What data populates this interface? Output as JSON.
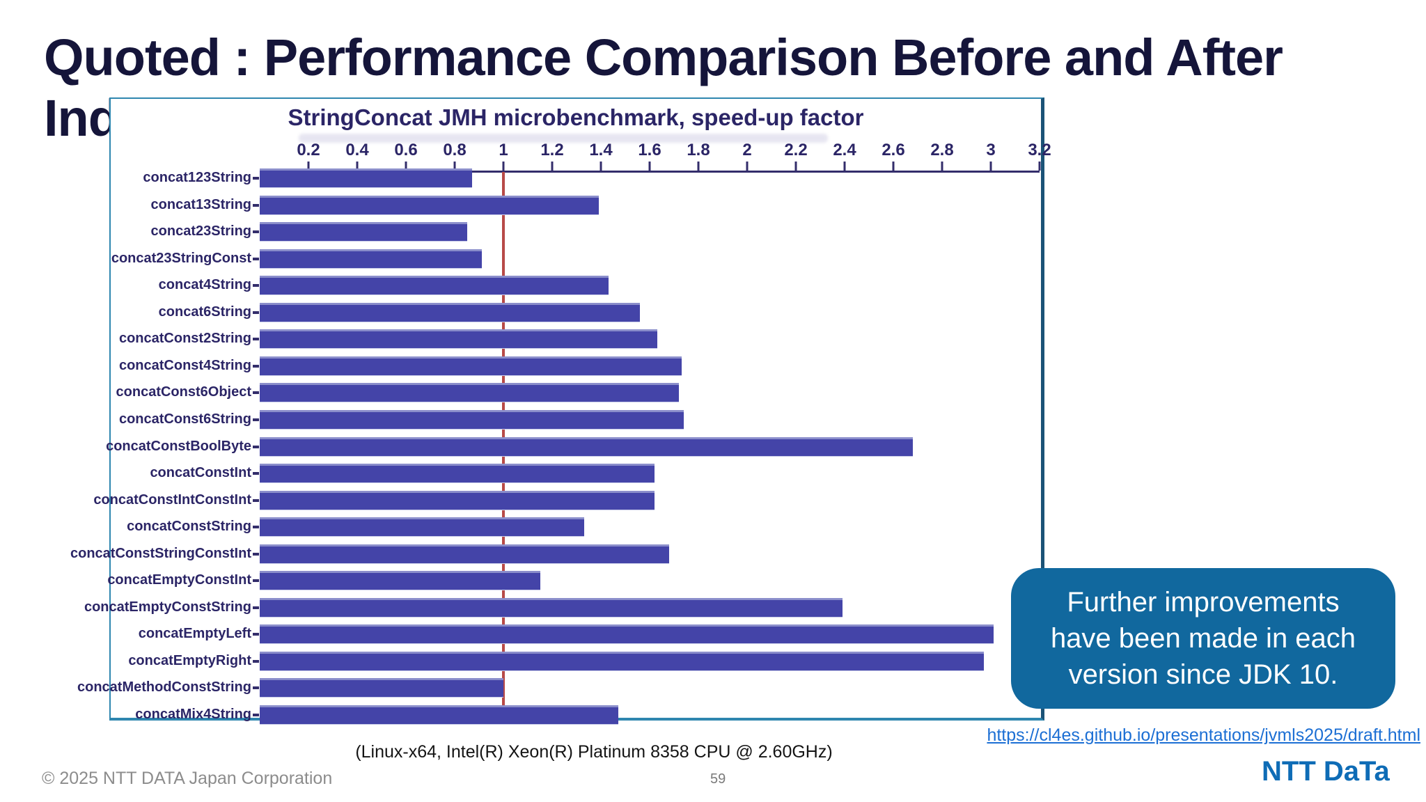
{
  "slide": {
    "title_line1": "Quoted : Performance Comparison Before and After",
    "title_line2": "Ind",
    "footer_note": "(Linux-x64, Intel(R) Xeon(R) Platinum 8358 CPU @ 2.60GHz)",
    "footer_copyright": "© 2025 NTT DATA Japan Corporation",
    "page_number": "59",
    "link": "https://cl4es.github.io/presentations/jvmls2025/draft.html",
    "logo_text": "NTT DaTa"
  },
  "callout": {
    "text": "Further improvements\nhave been made in each\nversion since JDK 10."
  },
  "colors": {
    "bar": "#4444a8",
    "bar_highlight": "#8b8ecb",
    "reference_line": "#b84a48",
    "chart_text": "#2b2566",
    "chart_border": "#2e86af",
    "callout_bg": "#11689e",
    "link": "#1c6fd4",
    "logo_blue": "#0e6cb6",
    "title_text": "#15153a"
  },
  "chart_data": {
    "type": "bar",
    "orientation": "horizontal",
    "title": "StringConcat JMH microbenchmark, speed-up factor",
    "xlim": [
      0,
      3.2
    ],
    "x_tick_labels": [
      "0.2",
      "0.4",
      "0.6",
      "0.8",
      "1",
      "1.2",
      "1.4",
      "1.6",
      "1.8",
      "2",
      "2.2",
      "2.4",
      "2.6",
      "2.8",
      "3",
      "3.2"
    ],
    "x_tick_values": [
      0.2,
      0.4,
      0.6,
      0.8,
      1,
      1.2,
      1.4,
      1.6,
      1.8,
      2,
      2.2,
      2.4,
      2.6,
      2.8,
      3,
      3.2
    ],
    "reference_line_x": 1.0,
    "grid": false,
    "legend": false,
    "categories": [
      "concat123String",
      "concat13String",
      "concat23String",
      "concat23StringConst",
      "concat4String",
      "concat6String",
      "concatConst2String",
      "concatConst4String",
      "concatConst6Object",
      "concatConst6String",
      "concatConstBoolByte",
      "concatConstInt",
      "concatConstIntConstInt",
      "concatConstString",
      "concatConstStringConstInt",
      "concatEmptyConstInt",
      "concatEmptyConstString",
      "concatEmptyLeft",
      "concatEmptyRight",
      "concatMethodConstString",
      "concatMix4String"
    ],
    "values": [
      0.87,
      1.39,
      0.85,
      0.91,
      1.43,
      1.56,
      1.63,
      1.73,
      1.72,
      1.74,
      2.68,
      1.62,
      1.62,
      1.33,
      1.68,
      1.15,
      2.39,
      3.01,
      2.97,
      1.0,
      1.47
    ]
  }
}
